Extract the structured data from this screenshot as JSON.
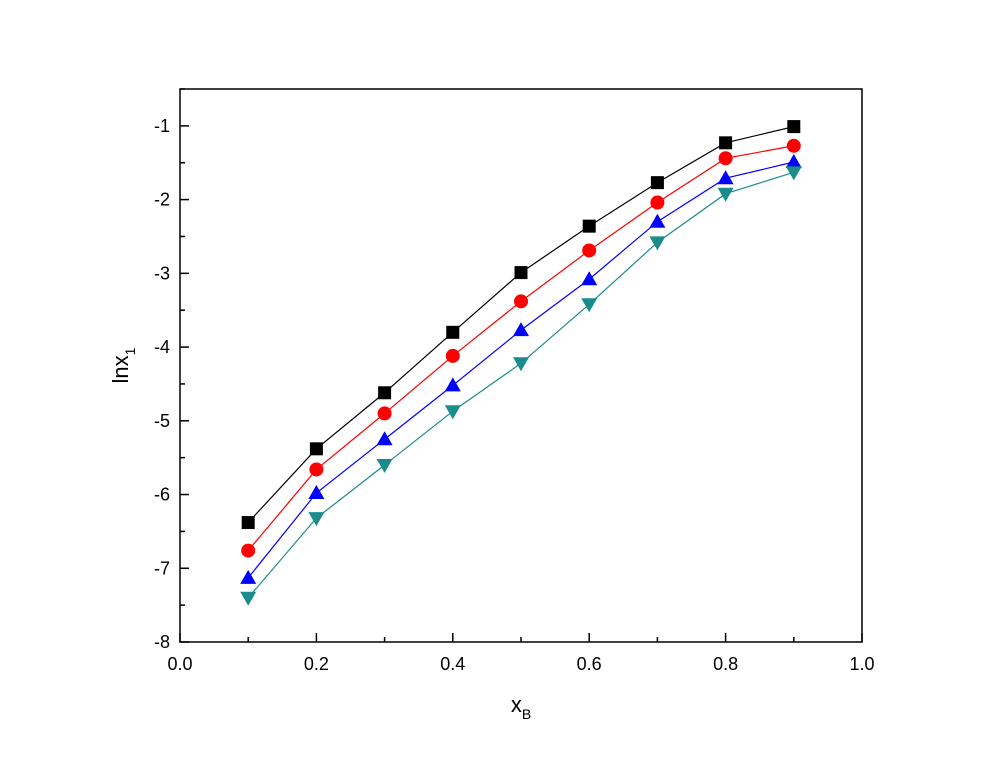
{
  "chart_data": {
    "type": "line",
    "x_label": {
      "text": "x",
      "sub": "B"
    },
    "y_label": {
      "text": "lnx",
      "sub": "1"
    },
    "x": [
      0.1,
      0.2,
      0.3,
      0.4,
      0.5,
      0.6,
      0.7,
      0.8,
      0.9
    ],
    "series": [
      {
        "color": "#000000",
        "marker": "square",
        "values": [
          -6.38,
          -5.38,
          -4.62,
          -3.8,
          -2.99,
          -2.36,
          -1.77,
          -1.23,
          -1.01
        ]
      },
      {
        "color": "#ff0000",
        "marker": "circle",
        "values": [
          -6.76,
          -5.66,
          -4.9,
          -4.12,
          -3.38,
          -2.69,
          -2.04,
          -1.44,
          -1.27
        ]
      },
      {
        "color": "#0000ff",
        "marker": "triangle-up",
        "values": [
          -7.13,
          -5.98,
          -5.25,
          -4.52,
          -3.77,
          -3.08,
          -2.3,
          -1.71,
          -1.49
        ]
      },
      {
        "color": "#1a8c8c",
        "marker": "triangle-down",
        "values": [
          -7.4,
          -6.32,
          -5.6,
          -4.87,
          -4.22,
          -3.42,
          -2.58,
          -1.92,
          -1.63
        ]
      }
    ],
    "xlim": [
      0,
      1
    ],
    "ylim": [
      -8,
      -0.5
    ],
    "xticks": [
      {
        "value": 0,
        "label": "0.0"
      },
      0.2,
      0.4,
      0.6,
      0.8,
      {
        "value": 1,
        "label": "1.0"
      }
    ],
    "xminorticks": [
      0.1,
      0.3,
      0.5,
      0.7,
      0.9
    ],
    "yticks": [
      -8,
      -7,
      -6,
      -5,
      -4,
      -3,
      -2,
      -1
    ],
    "yminorticks": [
      -7.5,
      -6.5,
      -5.5,
      -4.5,
      -3.5,
      -2.5,
      -1.5,
      -0.5
    ],
    "grid": false
  }
}
